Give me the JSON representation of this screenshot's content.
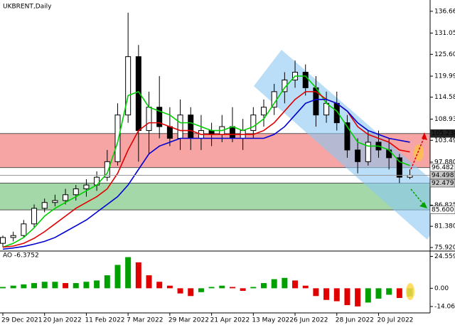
{
  "chart_data": [
    {
      "type": "candlestick",
      "title": "UKBRENT,Daily",
      "categories": [
        "29 Dec 2021",
        null,
        null,
        null,
        "20 Jan 2022",
        null,
        null,
        null,
        "11 Feb 2022",
        null,
        null,
        null,
        "7 Mar 2022",
        null,
        null,
        null,
        "29 Mar 2022",
        null,
        null,
        null,
        "21 Apr 2022",
        null,
        null,
        null,
        "13 May 2022",
        null,
        null,
        null,
        "6 Jun 2022",
        null,
        null,
        null,
        "28 Jun 2022",
        null,
        null,
        null,
        "20 Jul 2022",
        null,
        null,
        null
      ],
      "open": [
        77,
        78.5,
        79,
        82,
        86,
        87.5,
        88,
        89.5,
        91,
        92,
        94,
        98,
        110,
        125,
        106,
        112,
        107,
        104,
        110,
        104,
        106,
        105,
        107,
        104,
        106,
        110,
        112,
        116,
        119,
        121,
        117,
        110,
        113,
        108,
        101,
        98,
        103,
        101,
        99,
        94
      ],
      "high": [
        79,
        80,
        83,
        87,
        88.5,
        89.5,
        91,
        92,
        93.5,
        95.5,
        101,
        113,
        136.3,
        128,
        116,
        120,
        112,
        114,
        112,
        110,
        108,
        110,
        112,
        109,
        112,
        114,
        118,
        121,
        124,
        123,
        120,
        116,
        116,
        110,
        104,
        106,
        106,
        104,
        100,
        96
      ],
      "low": [
        76,
        77.5,
        78.5,
        81,
        85,
        86.5,
        87,
        88,
        89,
        90.5,
        93,
        97,
        108,
        98,
        100,
        104,
        102,
        101,
        101,
        101,
        102,
        103,
        103,
        101,
        104,
        107,
        110,
        113,
        117,
        115,
        107,
        108,
        106,
        99,
        95,
        97,
        99,
        96,
        92.5,
        93.5
      ],
      "close": [
        78.5,
        79,
        82,
        86,
        87.5,
        88,
        89.5,
        91,
        92,
        94,
        98,
        110,
        125,
        106,
        112,
        107,
        104,
        110,
        104,
        106,
        105,
        107,
        104,
        106,
        110,
        112,
        116,
        119,
        121,
        117,
        110,
        113,
        108,
        101,
        98,
        103,
        101,
        99,
        94,
        94.498
      ],
      "up_color": "#ffffff",
      "down_color": "#000000",
      "series": [
        {
          "color": "#00d000",
          "values": [
            76,
            77,
            78.5,
            81,
            84,
            86,
            87.5,
            89,
            90.5,
            92,
            95,
            103,
            115,
            116,
            112,
            111,
            110,
            108,
            108,
            107,
            106,
            106,
            107,
            106,
            107,
            109,
            113,
            117,
            120,
            120,
            117,
            113,
            111,
            107,
            103,
            102,
            102,
            101,
            98,
            97
          ]
        },
        {
          "color": "#e00000",
          "values": [
            76,
            76.3,
            77,
            78.3,
            80,
            82,
            84,
            86,
            87.5,
            89,
            91,
            95,
            101,
            106,
            108,
            108,
            107,
            106,
            106,
            105,
            105,
            105,
            105,
            105,
            105,
            106,
            108,
            111,
            114,
            116,
            116,
            114,
            113,
            111,
            107,
            105,
            104,
            103,
            101,
            100.5
          ]
        },
        {
          "color": "#0000d0",
          "values": [
            75.5,
            75.8,
            76.2,
            76.8,
            77.5,
            78.5,
            80,
            81.5,
            83,
            85,
            87,
            89,
            92,
            96,
            100,
            102,
            103,
            104,
            104,
            104,
            104,
            104,
            104,
            104,
            104,
            104,
            105,
            107,
            110,
            113,
            114,
            114,
            113,
            111,
            108,
            106,
            105,
            104,
            103.5,
            103
          ]
        }
      ],
      "ylim": [
        75.2,
        139.2
      ],
      "yticks": [
        136.665,
        131.055,
        {
          "value": 125.6,
          "label": "125.600"
        },
        {
          "value": 119.99,
          "label": "119.990"
        },
        114.585,
        108.935,
        {
          "value": 103.49,
          "label": "103.490"
        },
        {
          "value": 97.88,
          "label": "97.880"
        },
        86.825,
        {
          "value": 81.38,
          "label": "81.380"
        },
        {
          "value": 75.92,
          "label": "75.920"
        }
      ],
      "zones": [
        {
          "from": 105.238,
          "to": 96.482,
          "color": "#f6a4a4"
        },
        {
          "from": 92.479,
          "to": {
            "value": 85.6,
            "label": "85.600"
          },
          "color": "#a4d8a8"
        }
      ]
    },
    {
      "type": "bar",
      "title": "AO",
      "values": [
        1,
        2,
        3,
        4,
        5,
        5,
        4,
        4,
        5,
        6,
        10,
        18,
        24,
        20,
        10,
        5,
        2,
        -4,
        -6,
        -3,
        1,
        2,
        1,
        -2,
        1,
        4,
        7,
        8,
        6,
        2,
        -6,
        -9,
        -10,
        -13,
        -14,
        -11,
        -8,
        -5,
        -7.5,
        -6.3752
      ],
      "up_color": "#00a000",
      "down_color": "#e00000",
      "ylim": [
        -19,
        27.6
      ],
      "yticks": [
        24.559,
        {
          "value": 0,
          "label": "0.00"
        },
        -14.064
      ]
    }
  ]
}
